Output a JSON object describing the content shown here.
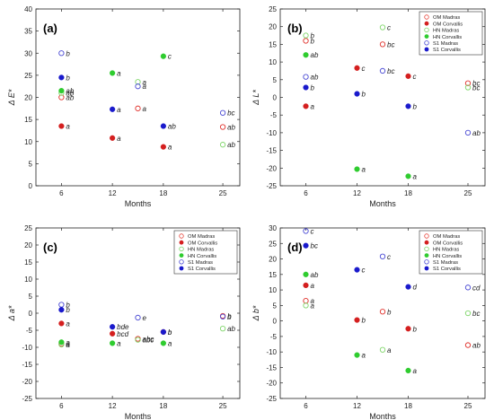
{
  "figure": {
    "legend_entries": [
      {
        "label": "OM Madras",
        "marker": "open",
        "color": "#e8463c"
      },
      {
        "label": "OM Corvallis",
        "marker": "filled",
        "color": "#d41f1f"
      },
      {
        "label": "HN Madras",
        "marker": "open",
        "color": "#7fd66a"
      },
      {
        "label": "HN Corvallis",
        "marker": "filled",
        "color": "#2fcc2f"
      },
      {
        "label": "S1 Madras",
        "marker": "open",
        "color": "#4a4ad4"
      },
      {
        "label": "S1 Corvallis",
        "marker": "filled",
        "color": "#1a1acc"
      }
    ],
    "colors": {
      "om": "#e0302a",
      "hn": "#3ccc3c",
      "s1": "#1f1fcc"
    }
  },
  "chart_data": [
    {
      "type": "scatter",
      "panel_label": "(a)",
      "xlabel": "Months",
      "ylabel": "Δ E*",
      "xticks": [
        6,
        12,
        18,
        25
      ],
      "yticks": [
        0,
        5,
        10,
        15,
        20,
        25,
        30,
        35,
        40
      ],
      "xlim": [
        3,
        27
      ],
      "ylim": [
        0,
        40
      ],
      "legend_position": "none",
      "series": [
        {
          "key": "om_madras",
          "open": true,
          "color": "#e0302a",
          "points": [
            {
              "x": 6,
              "y": 20.0,
              "label": "ab"
            },
            {
              "x": 15,
              "y": 17.5,
              "label": "a"
            },
            {
              "x": 25,
              "y": 13.3,
              "label": "ab"
            }
          ]
        },
        {
          "key": "om_corvallis",
          "open": false,
          "color": "#d41f1f",
          "points": [
            {
              "x": 6,
              "y": 13.5,
              "label": "a"
            },
            {
              "x": 12,
              "y": 10.8,
              "label": "a"
            },
            {
              "x": 18,
              "y": 8.8,
              "label": "a"
            }
          ]
        },
        {
          "key": "hn_madras",
          "open": true,
          "color": "#7fd66a",
          "points": [
            {
              "x": 6,
              "y": 21.0,
              "label": "ab"
            },
            {
              "x": 15,
              "y": 23.5,
              "label": "a"
            },
            {
              "x": 25,
              "y": 9.3,
              "label": "ab"
            }
          ]
        },
        {
          "key": "hn_corvallis",
          "open": false,
          "color": "#2fcc2f",
          "points": [
            {
              "x": 6,
              "y": 21.5,
              "label": "ab"
            },
            {
              "x": 12,
              "y": 25.5,
              "label": "a"
            },
            {
              "x": 18,
              "y": 29.3,
              "label": "c"
            }
          ]
        },
        {
          "key": "s1_madras",
          "open": true,
          "color": "#4a4ad4",
          "points": [
            {
              "x": 6,
              "y": 30.0,
              "label": "b"
            },
            {
              "x": 15,
              "y": 22.5,
              "label": "a"
            },
            {
              "x": 25,
              "y": 16.5,
              "label": "bc"
            }
          ]
        },
        {
          "key": "s1_corvallis",
          "open": false,
          "color": "#1a1acc",
          "points": [
            {
              "x": 6,
              "y": 24.5,
              "label": "b"
            },
            {
              "x": 12,
              "y": 17.3,
              "label": "a"
            },
            {
              "x": 18,
              "y": 13.5,
              "label": "ab"
            }
          ]
        }
      ]
    },
    {
      "type": "scatter",
      "panel_label": "(b)",
      "xlabel": "Months",
      "ylabel": "Δ L*",
      "xticks": [
        6,
        12,
        18,
        25
      ],
      "yticks": [
        -25,
        -20,
        -15,
        -10,
        -5,
        0,
        5,
        10,
        15,
        20,
        25
      ],
      "xlim": [
        3,
        27
      ],
      "ylim": [
        -25,
        25
      ],
      "legend_position": "top-right",
      "series": [
        {
          "key": "om_madras",
          "open": true,
          "color": "#e0302a",
          "points": [
            {
              "x": 6,
              "y": 16.0,
              "label": "b"
            },
            {
              "x": 15,
              "y": 15.0,
              "label": "bc"
            },
            {
              "x": 25,
              "y": 4.0,
              "label": "bc"
            }
          ]
        },
        {
          "key": "om_corvallis",
          "open": false,
          "color": "#d41f1f",
          "points": [
            {
              "x": 6,
              "y": -2.5,
              "label": "a"
            },
            {
              "x": 12,
              "y": 8.3,
              "label": "c"
            },
            {
              "x": 18,
              "y": 6.0,
              "label": "c"
            }
          ]
        },
        {
          "key": "hn_madras",
          "open": true,
          "color": "#7fd66a",
          "points": [
            {
              "x": 6,
              "y": 17.5,
              "label": "b"
            },
            {
              "x": 15,
              "y": 19.8,
              "label": "c"
            },
            {
              "x": 25,
              "y": 2.8,
              "label": "bc"
            }
          ]
        },
        {
          "key": "hn_corvallis",
          "open": false,
          "color": "#2fcc2f",
          "points": [
            {
              "x": 6,
              "y": 12.0,
              "label": "ab"
            },
            {
              "x": 12,
              "y": -20.3,
              "label": "a"
            },
            {
              "x": 18,
              "y": -22.3,
              "label": "a"
            }
          ]
        },
        {
          "key": "s1_madras",
          "open": true,
          "color": "#4a4ad4",
          "points": [
            {
              "x": 6,
              "y": 5.8,
              "label": "ab"
            },
            {
              "x": 15,
              "y": 7.5,
              "label": "bc"
            },
            {
              "x": 25,
              "y": -10.0,
              "label": "ab"
            }
          ]
        },
        {
          "key": "s1_corvallis",
          "open": false,
          "color": "#1a1acc",
          "points": [
            {
              "x": 6,
              "y": 2.8,
              "label": "b"
            },
            {
              "x": 12,
              "y": 1.0,
              "label": "b"
            },
            {
              "x": 18,
              "y": -2.5,
              "label": "b"
            }
          ]
        }
      ]
    },
    {
      "type": "scatter",
      "panel_label": "(c)",
      "xlabel": "Months",
      "ylabel": "Δ a*",
      "xticks": [
        6,
        12,
        18,
        25
      ],
      "yticks": [
        -25,
        -20,
        -15,
        -10,
        -5,
        0,
        5,
        10,
        15,
        20,
        25
      ],
      "xlim": [
        3,
        27
      ],
      "ylim": [
        -25,
        25
      ],
      "legend_position": "top-right",
      "series": [
        {
          "key": "om_madras",
          "open": true,
          "color": "#e0302a",
          "points": [
            {
              "x": 6,
              "y": -9.0,
              "label": "a"
            },
            {
              "x": 15,
              "y": -7.5,
              "label": "abc"
            },
            {
              "x": 25,
              "y": -0.8,
              "label": "b"
            }
          ]
        },
        {
          "key": "om_corvallis",
          "open": false,
          "color": "#d41f1f",
          "points": [
            {
              "x": 6,
              "y": -3.0,
              "label": "a"
            },
            {
              "x": 12,
              "y": -6.0,
              "label": "bcd"
            },
            {
              "x": 18,
              "y": -5.5,
              "label": "b"
            }
          ]
        },
        {
          "key": "hn_madras",
          "open": true,
          "color": "#7fd66a",
          "points": [
            {
              "x": 6,
              "y": -9.2,
              "label": "a"
            },
            {
              "x": 15,
              "y": -7.8,
              "label": "abc"
            },
            {
              "x": 25,
              "y": -4.5,
              "label": "ab"
            }
          ]
        },
        {
          "key": "hn_corvallis",
          "open": false,
          "color": "#2fcc2f",
          "points": [
            {
              "x": 6,
              "y": -8.5,
              "label": "a"
            },
            {
              "x": 12,
              "y": -8.8,
              "label": "a"
            },
            {
              "x": 18,
              "y": -8.8,
              "label": "a"
            }
          ]
        },
        {
          "key": "s1_madras",
          "open": true,
          "color": "#4a4ad4",
          "points": [
            {
              "x": 6,
              "y": 2.5,
              "label": "b"
            },
            {
              "x": 15,
              "y": -1.3,
              "label": "e"
            },
            {
              "x": 25,
              "y": -1.0,
              "label": "b"
            }
          ]
        },
        {
          "key": "s1_corvallis",
          "open": false,
          "color": "#1a1acc",
          "points": [
            {
              "x": 6,
              "y": 1.0,
              "label": "b"
            },
            {
              "x": 12,
              "y": -4.0,
              "label": "bde"
            },
            {
              "x": 18,
              "y": -5.5,
              "label": "b"
            }
          ]
        }
      ]
    },
    {
      "type": "scatter",
      "panel_label": "(d)",
      "xlabel": "Months",
      "ylabel": "Δ b*",
      "xticks": [
        6,
        12,
        18,
        25
      ],
      "yticks": [
        -25,
        -20,
        -15,
        -10,
        -5,
        0,
        5,
        10,
        15,
        20,
        25,
        30
      ],
      "xlim": [
        3,
        27
      ],
      "ylim": [
        -25,
        30
      ],
      "legend_position": "top-right",
      "series": [
        {
          "key": "om_madras",
          "open": true,
          "color": "#e0302a",
          "points": [
            {
              "x": 6,
              "y": 6.5,
              "label": "a"
            },
            {
              "x": 15,
              "y": 3.0,
              "label": "b"
            },
            {
              "x": 25,
              "y": -7.8,
              "label": "ab"
            }
          ]
        },
        {
          "key": "om_corvallis",
          "open": false,
          "color": "#d41f1f",
          "points": [
            {
              "x": 6,
              "y": 11.5,
              "label": "a"
            },
            {
              "x": 12,
              "y": 0.3,
              "label": "b"
            },
            {
              "x": 18,
              "y": -2.5,
              "label": "b"
            }
          ]
        },
        {
          "key": "hn_madras",
          "open": true,
          "color": "#7fd66a",
          "points": [
            {
              "x": 6,
              "y": 5.0,
              "label": "a"
            },
            {
              "x": 15,
              "y": -9.3,
              "label": "a"
            },
            {
              "x": 25,
              "y": 2.5,
              "label": "bc"
            }
          ]
        },
        {
          "key": "hn_corvallis",
          "open": false,
          "color": "#2fcc2f",
          "points": [
            {
              "x": 6,
              "y": 15.0,
              "label": "ab"
            },
            {
              "x": 12,
              "y": -11.0,
              "label": "a"
            },
            {
              "x": 18,
              "y": -16.0,
              "label": "a"
            }
          ]
        },
        {
          "key": "s1_madras",
          "open": true,
          "color": "#4a4ad4",
          "points": [
            {
              "x": 6,
              "y": 29.0,
              "label": "c"
            },
            {
              "x": 15,
              "y": 20.8,
              "label": "c"
            },
            {
              "x": 25,
              "y": 10.8,
              "label": "cd"
            }
          ]
        },
        {
          "key": "s1_corvallis",
          "open": false,
          "color": "#1a1acc",
          "points": [
            {
              "x": 6,
              "y": 24.3,
              "label": "bc"
            },
            {
              "x": 12,
              "y": 16.5,
              "label": "c"
            },
            {
              "x": 18,
              "y": 11.0,
              "label": "d"
            }
          ]
        }
      ]
    }
  ]
}
